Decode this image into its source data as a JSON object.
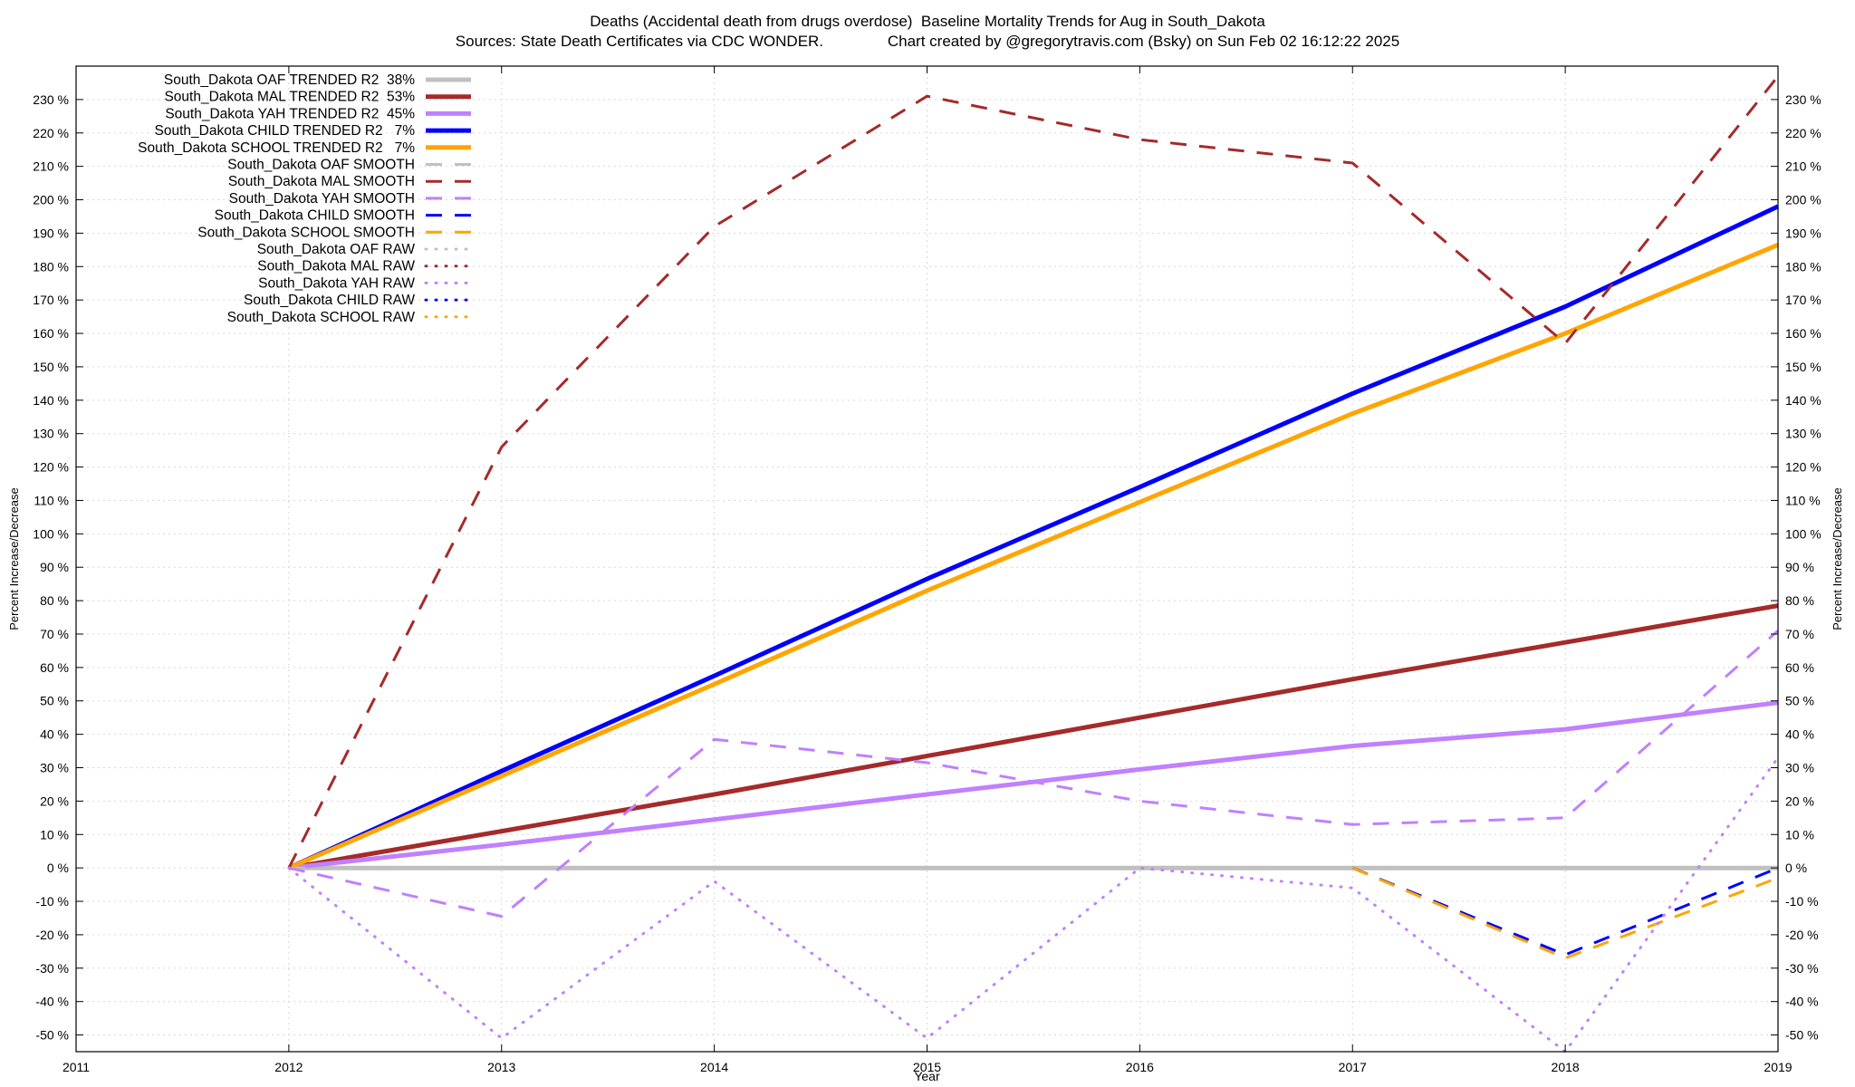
{
  "header": {
    "title": "Deaths (Accidental death from drugs overdose)  Baseline Mortality Trends for Aug in South_Dakota",
    "subtitle": "Sources: State Death Certificates via CDC WONDER.               Chart created by @gregorytravis.com (Bsky) on Sun Feb 02 16:12:22 2025"
  },
  "chart_data": {
    "type": "line",
    "xlabel": "Year",
    "ylabel": "Percent Increase/Decrease",
    "y2label": "Percent Increase/Decrease",
    "xlim": [
      2011,
      2019
    ],
    "ylim": [
      -55,
      240
    ],
    "x_ticks": [
      "2011",
      "2012",
      "2013",
      "2014",
      "2015",
      "2016",
      "2017",
      "2018",
      "2019"
    ],
    "y_ticks": [
      "-50 %",
      "-40 %",
      "-30 %",
      "-20 %",
      "-10 %",
      "0 %",
      "10 %",
      "20 %",
      "30 %",
      "40 %",
      "50 %",
      "60 %",
      "70 %",
      "80 %",
      "90 %",
      "100 %",
      "110 %",
      "120 %",
      "130 %",
      "140 %",
      "150 %",
      "160 %",
      "170 %",
      "180 %",
      "190 %",
      "200 %",
      "210 %",
      "220 %",
      "230 %"
    ],
    "grid": true,
    "legend_position": "top-left",
    "x": [
      2012,
      2013,
      2014,
      2015,
      2016,
      2017,
      2018,
      2019
    ],
    "series": [
      {
        "name": "South_Dakota OAF TRENDED R2  38%",
        "style": "solid",
        "color": "#c0c0c0",
        "values": [
          0,
          0,
          0,
          0,
          0,
          0,
          0,
          0
        ]
      },
      {
        "name": "South_Dakota MAL TRENDED R2  53%",
        "style": "solid",
        "color": "#a52a2a",
        "values": [
          0,
          11,
          22,
          33.5,
          45,
          56.5,
          67.5,
          78.5
        ]
      },
      {
        "name": "South_Dakota YAH TRENDED R2  45%",
        "style": "solid",
        "color": "#c080ff",
        "values": [
          0,
          7,
          14.5,
          22,
          29.5,
          36.5,
          41.5,
          49.5
        ]
      },
      {
        "name": "South_Dakota CHILD TRENDED R2   7%",
        "style": "solid",
        "color": "#0000ff",
        "values": [
          0,
          29,
          57.5,
          86.5,
          114,
          142,
          168,
          198
        ]
      },
      {
        "name": "South_Dakota SCHOOL TRENDED R2   7%",
        "style": "solid",
        "color": "#ffa500",
        "values": [
          0,
          27.5,
          55,
          83,
          109.5,
          136,
          160,
          186.5
        ]
      },
      {
        "name": "South_Dakota OAF SMOOTH",
        "style": "dash",
        "color": "#c0c0c0",
        "values": [
          0,
          0,
          0,
          0,
          0,
          0,
          0,
          0
        ]
      },
      {
        "name": "South_Dakota MAL SMOOTH",
        "style": "dash",
        "color": "#a52a2a",
        "values": [
          0,
          126,
          192,
          231,
          218,
          211,
          157,
          237
        ]
      },
      {
        "name": "South_Dakota YAH SMOOTH",
        "style": "dash",
        "color": "#c080ff",
        "values": [
          0,
          -14.5,
          38.5,
          31.5,
          20,
          13,
          15,
          71
        ]
      },
      {
        "name": "South_Dakota CHILD SMOOTH",
        "style": "dash",
        "color": "#0000ff",
        "values": [
          null,
          null,
          null,
          null,
          null,
          0,
          -26,
          0
        ]
      },
      {
        "name": "South_Dakota SCHOOL SMOOTH",
        "style": "dash",
        "color": "#ffa500",
        "values": [
          null,
          null,
          null,
          null,
          null,
          0,
          -27,
          -3
        ]
      },
      {
        "name": "South_Dakota OAF RAW",
        "style": "dot",
        "color": "#c0c0c0",
        "values": [
          null,
          null,
          null,
          null,
          null,
          null,
          null,
          null
        ]
      },
      {
        "name": "South_Dakota MAL RAW",
        "style": "dot",
        "color": "#a52a2a",
        "values": [
          null,
          null,
          null,
          null,
          null,
          null,
          null,
          null
        ]
      },
      {
        "name": "South_Dakota YAH RAW",
        "style": "dot",
        "color": "#c080ff",
        "values": [
          0,
          -51,
          -4,
          -51,
          0,
          -6,
          -55,
          33
        ]
      },
      {
        "name": "South_Dakota CHILD RAW",
        "style": "dot",
        "color": "#0000ff",
        "values": [
          null,
          null,
          null,
          null,
          null,
          null,
          null,
          null
        ]
      },
      {
        "name": "South_Dakota SCHOOL RAW",
        "style": "dot",
        "color": "#ffa500",
        "values": [
          null,
          null,
          null,
          null,
          null,
          null,
          null,
          null
        ]
      }
    ]
  }
}
